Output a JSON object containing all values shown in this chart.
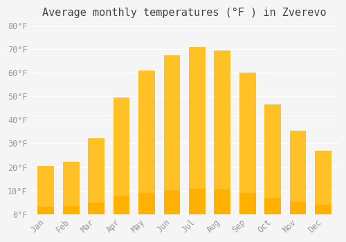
{
  "title": "Average monthly temperatures (°F ) in Zverevo",
  "months": [
    "Jan",
    "Feb",
    "Mar",
    "Apr",
    "May",
    "Jun",
    "Jul",
    "Aug",
    "Sep",
    "Oct",
    "Nov",
    "Dec"
  ],
  "values": [
    20.5,
    22.2,
    32.2,
    49.5,
    61.0,
    67.5,
    71.0,
    69.5,
    60.0,
    46.5,
    35.5,
    27.0
  ],
  "bar_color_top": "#FFC125",
  "bar_color_bottom": "#FFB000",
  "ylim": [
    0,
    80
  ],
  "yticks": [
    0,
    10,
    20,
    30,
    40,
    50,
    60,
    70,
    80
  ],
  "ytick_labels": [
    "0°F",
    "10°F",
    "20°F",
    "30°F",
    "40°F",
    "50°F",
    "60°F",
    "70°F",
    "80°F"
  ],
  "background_color": "#f5f5f5",
  "grid_color": "#ffffff",
  "title_fontsize": 11,
  "tick_fontsize": 8.5,
  "bar_edge_color": "none"
}
